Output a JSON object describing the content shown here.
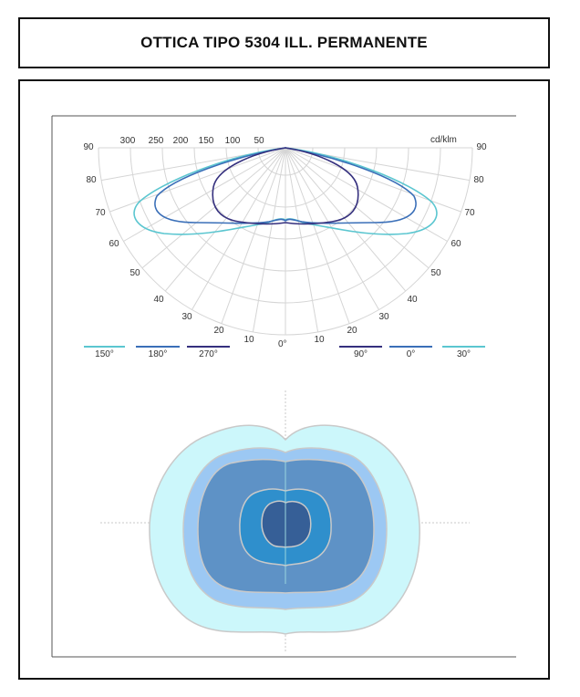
{
  "title": "OTTICA TIPO 5304 ILL. PERMANENTE",
  "polar": {
    "unit_label": "cd/klm",
    "intensity_labels": [
      "300",
      "250",
      "200",
      "150",
      "100",
      "50"
    ],
    "angle_labels_left": [
      "90",
      "80",
      "70",
      "60",
      "50",
      "40",
      "30",
      "20",
      "10"
    ],
    "angle_labels_right": [
      "90",
      "80",
      "70",
      "60",
      "50",
      "40",
      "30",
      "20",
      "10"
    ],
    "center_label": "0°"
  },
  "legend_left": [
    {
      "label": "150°",
      "color": "#5bc6d0"
    },
    {
      "label": "180°",
      "color": "#3a6fb8"
    },
    {
      "label": "270°",
      "color": "#35307e"
    }
  ],
  "legend_right": [
    {
      "label": "90°",
      "color": "#35307e"
    },
    {
      "label": "0°",
      "color": "#3a6fb8"
    },
    {
      "label": "30°",
      "color": "#5bc6d0"
    }
  ],
  "colors": {
    "curve_outer": "#5bc6d0",
    "curve_mid": "#3a6fb8",
    "curve_inner": "#35307e",
    "iso_1": "#ccf7fb",
    "iso_2": "#9cc8f3",
    "iso_3": "#5e92c6",
    "iso_4": "#2f8fcc",
    "iso_5": "#365f97"
  }
}
